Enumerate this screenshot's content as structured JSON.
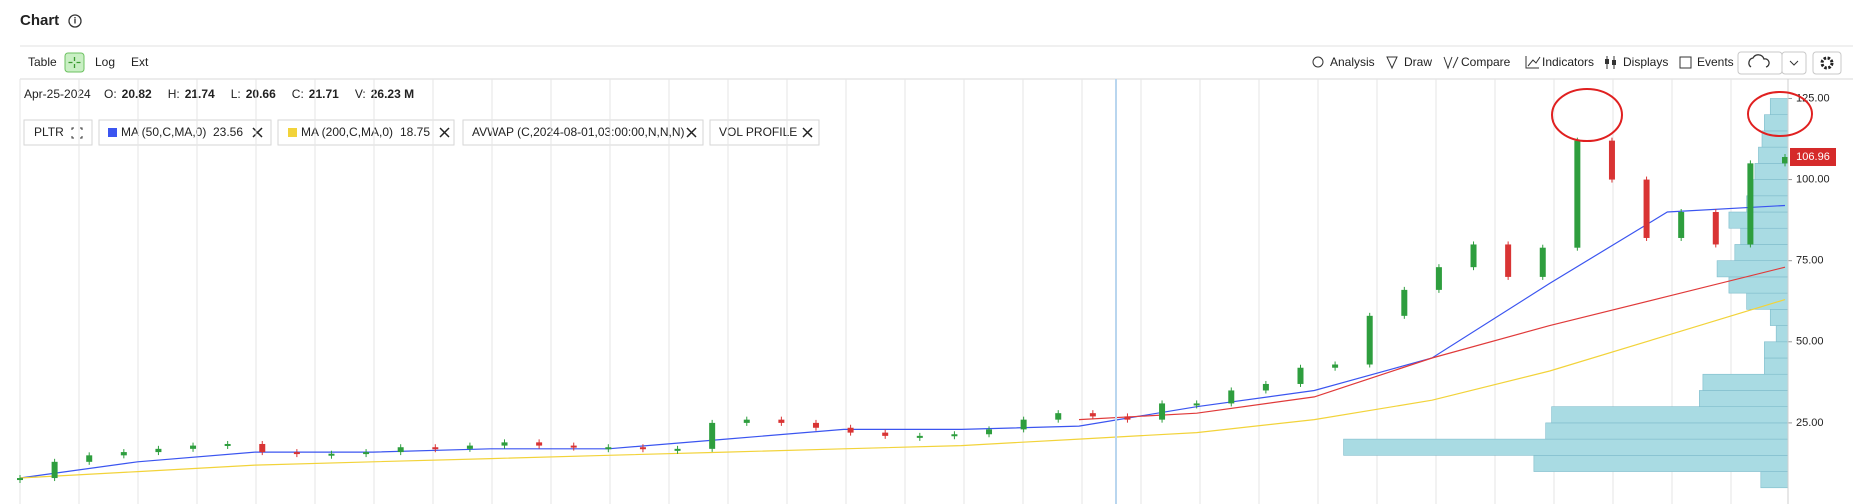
{
  "header": {
    "title": "Chart"
  },
  "toolbar": {
    "left": [
      "Table",
      "Log",
      "Ext"
    ],
    "right": [
      "Analysis",
      "Draw",
      "Compare",
      "Indicators",
      "Displays",
      "Events"
    ]
  },
  "info": {
    "date": "Apr-25-2024",
    "fields": [
      {
        "label": "O:",
        "value": 20.82
      },
      {
        "label": "H:",
        "value": 21.74
      },
      {
        "label": "L:",
        "value": 20.66
      },
      {
        "label": "C:",
        "value": 21.71
      },
      {
        "label": "V:",
        "value": "26.23 M"
      }
    ]
  },
  "chart_data": {
    "type": "candlestick",
    "ylim": [
      0,
      131
    ],
    "yticks": [
      {
        "value": 25,
        "label": "25.00"
      },
      {
        "value": 50,
        "label": "50.00"
      },
      {
        "value": 75,
        "label": "75.00"
      },
      {
        "value": 100,
        "label": "100.00"
      },
      {
        "value": 125,
        "label": "125.00"
      }
    ],
    "last_price": 106.96,
    "series": [
      {
        "name": "PLTR",
        "up_color": "#2e9e3e",
        "down_color": "#d93434",
        "values": [
          8,
          13,
          15,
          16,
          17,
          18,
          18.5,
          16,
          15.5,
          15.5,
          16,
          17.5,
          17,
          18,
          19,
          18,
          17.5,
          17.5,
          17,
          17,
          25,
          26,
          25,
          23.5,
          22,
          21,
          21,
          21.5,
          23,
          26,
          28,
          27,
          26,
          31,
          31,
          35,
          37,
          42,
          43,
          58,
          66,
          73,
          80,
          70,
          79,
          112,
          100,
          82,
          90,
          80,
          105,
          106.96
        ]
      }
    ],
    "overlays": [
      {
        "name": "MA (50,C,MA,0)",
        "legend_value": 23.56,
        "color": "#3b55f0",
        "values": [
          8,
          13,
          16,
          16,
          17,
          17,
          20,
          23,
          23,
          24,
          30,
          35,
          45,
          68,
          90,
          92
        ]
      },
      {
        "name": "MA (200,C,MA,0)",
        "legend_value": 18.75,
        "color": "#f2d33a",
        "values": [
          8,
          10,
          12,
          13,
          14,
          15,
          16,
          17,
          18,
          20,
          22,
          26,
          32,
          41,
          52,
          63
        ]
      },
      {
        "name": "AVWAP (C,2024-08-01,03:00:00,N,N,N)",
        "color": "#e03a3a",
        "values": [
          null,
          null,
          null,
          null,
          null,
          null,
          null,
          null,
          null,
          26,
          28,
          33,
          45,
          55,
          64,
          73
        ]
      }
    ],
    "volume_profile": {
      "name": "VOL PROFILE",
      "color": "#a9dbe3",
      "bins": [
        5,
        10,
        15,
        20,
        25,
        30,
        35,
        40,
        45,
        50,
        55,
        60,
        65,
        70,
        75,
        80,
        85,
        90,
        95,
        100,
        105,
        110,
        115,
        120,
        125
      ],
      "volumes": [
        23,
        215,
        376,
        205,
        200,
        75,
        72,
        20,
        20,
        10,
        15,
        35,
        50,
        60,
        45,
        40,
        50,
        35,
        30,
        28,
        25,
        22,
        20,
        15
      ]
    }
  }
}
